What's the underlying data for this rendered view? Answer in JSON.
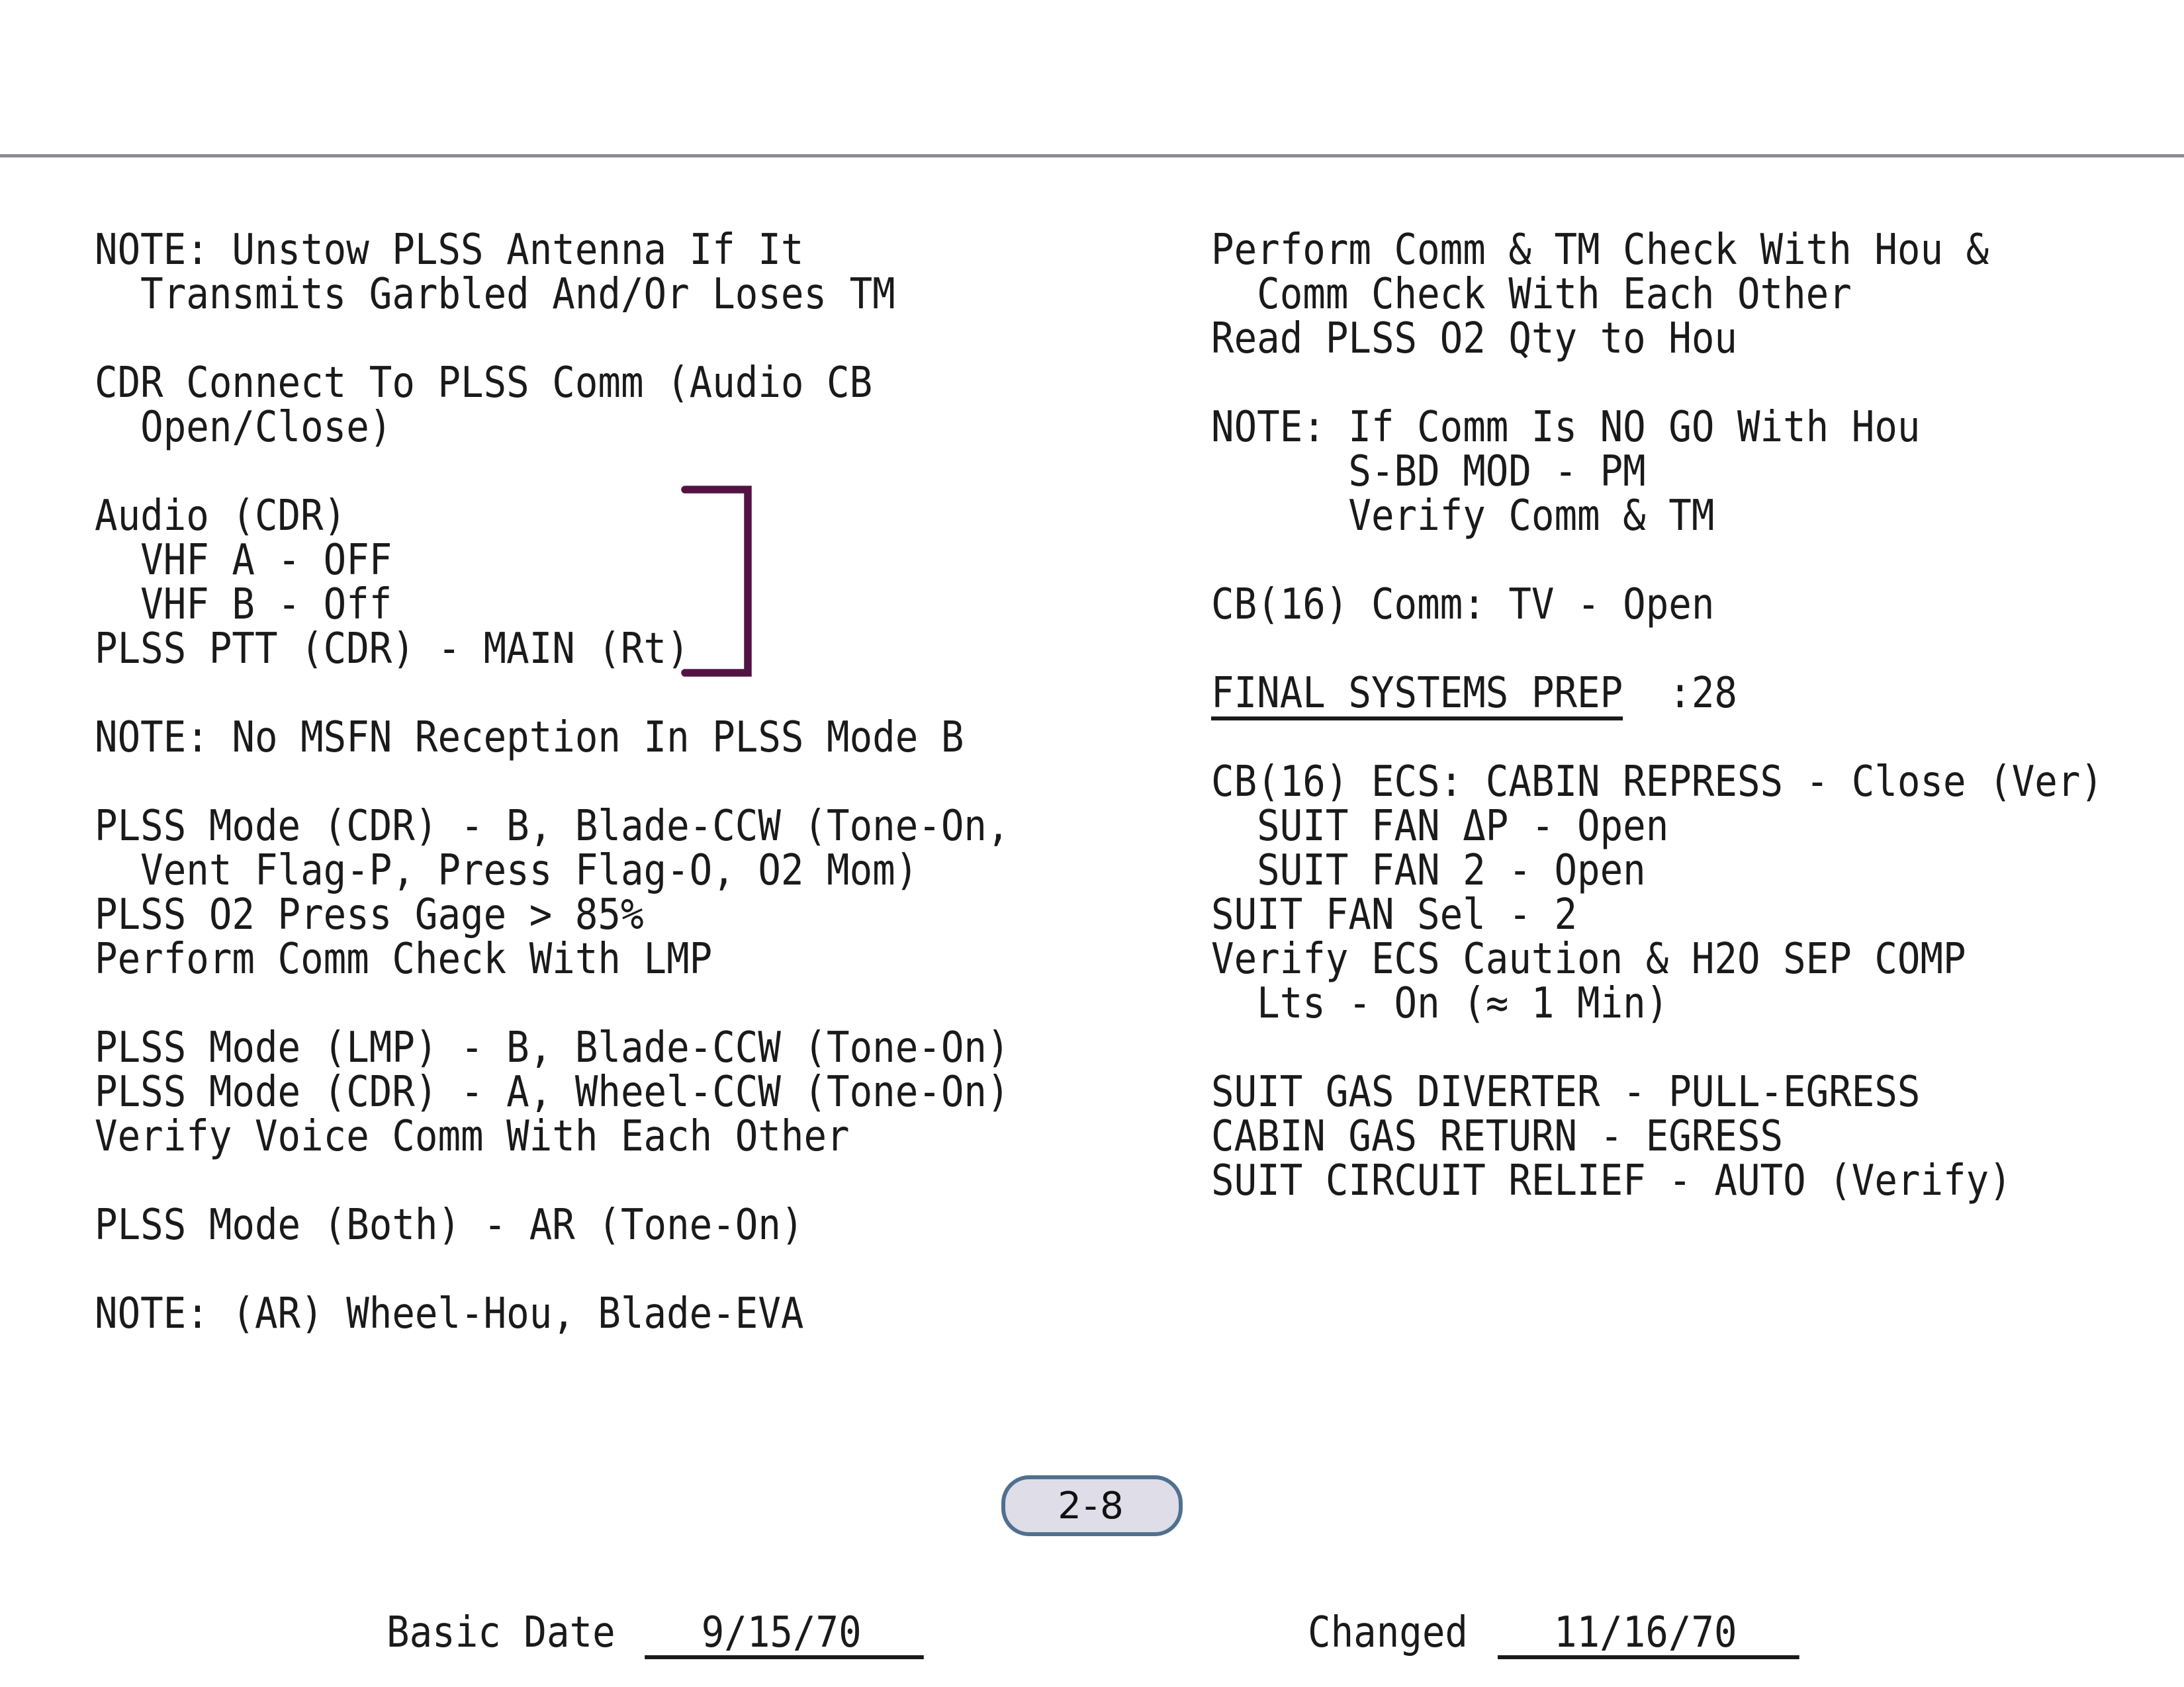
{
  "page": {
    "background": "#ffffff",
    "top_rule_color": "#8d8d95",
    "text_color": "#1a1a1a"
  },
  "left_column": {
    "lines": [
      [
        "NOTE: Unstow PLSS Antenna If It"
      ],
      [
        "  Transmits Garbled And/Or Loses TM"
      ],
      [],
      [
        "CDR Connect To PLSS Comm (Audio CB"
      ],
      [
        "  Open/Close)"
      ],
      [],
      [
        "Audio (CDR)"
      ],
      [
        "  VHF A - OFF"
      ],
      [
        "  VHF B - Off"
      ],
      [
        "PLSS PTT (CDR) - MAIN (Rt)"
      ],
      [],
      [
        "NOTE: No MSFN Reception In PLSS Mode B"
      ],
      [],
      [
        "PLSS Mode (CDR) - B, Blade-CCW (Tone-On,"
      ],
      [
        "  Vent Flag-P, Press Flag-O, O2 Mom)"
      ],
      [
        "PLSS O2 Press Gage > 85%"
      ],
      [
        "Perform Comm Check With LMP"
      ],
      [],
      [
        "PLSS Mode (LMP) - B, Blade-CCW (Tone-On)"
      ],
      [
        "PLSS Mode (CDR) - A, Wheel-CCW (Tone-On)"
      ],
      [
        "Verify Voice Comm With Each Other"
      ],
      [],
      [
        "PLSS Mode (Both) - AR (Tone-On)"
      ],
      [],
      [
        "NOTE: (AR) Wheel-Hou, Blade-EVA"
      ]
    ]
  },
  "right_column": {
    "lines": [
      [
        "Perform Comm & TM Check With Hou &"
      ],
      [
        "  Comm Check With Each Other"
      ],
      [
        "Read PLSS O2 Qty to Hou"
      ],
      [],
      [
        "NOTE: If Comm Is NO GO With Hou"
      ],
      [
        "      S-BD MOD - PM"
      ],
      [
        "      Verify Comm & TM"
      ],
      [],
      [
        "CB(16) Comm: TV - Open"
      ],
      [],
      [
        {
          "t": "FINAL SYSTEMS PREP",
          "u": true
        },
        {
          "t": "  :28"
        }
      ],
      [],
      [
        "CB(16) ECS: CABIN REPRESS - Close (Ver)"
      ],
      [
        "  SUIT FAN ΔP - Open"
      ],
      [
        "  SUIT FAN 2 - Open"
      ],
      [
        "SUIT FAN Sel - 2"
      ],
      [
        "Verify ECS Caution & H2O SEP COMP"
      ],
      [
        "  Lts - On (≈ 1 Min)"
      ],
      [],
      [
        "SUIT GAS DIVERTER - PULL-EGRESS"
      ],
      [
        "CABIN GAS RETURN - EGRESS"
      ],
      [
        "SUIT CIRCUIT RELIEF - AUTO (Verify)"
      ]
    ]
  },
  "bracket": {
    "color": "#541243"
  },
  "page_badge": {
    "label": "2-8",
    "fill": "#dedde8",
    "border_color": "#51708f"
  },
  "footer": {
    "basic_date_label": "Basic Date",
    "basic_date_value": "9/15/70",
    "changed_label": "Changed",
    "changed_value": "11/16/70"
  }
}
